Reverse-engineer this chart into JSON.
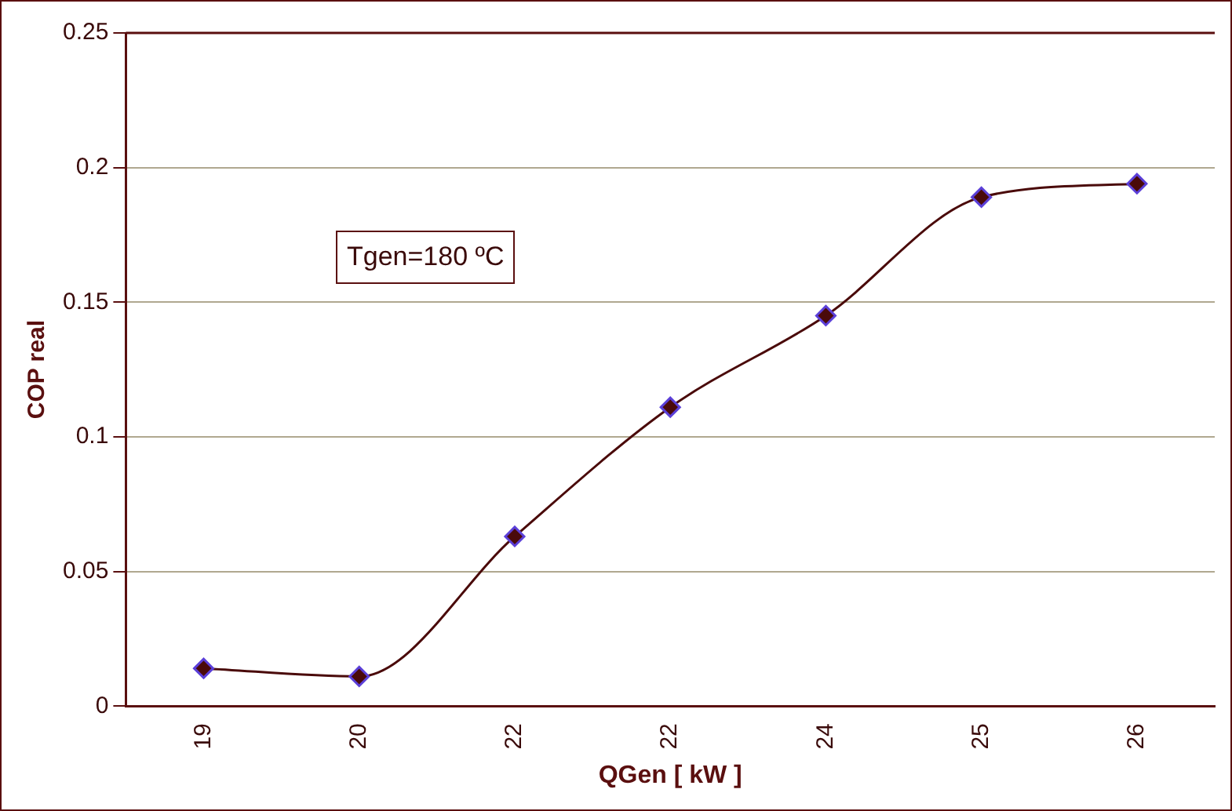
{
  "chart_data": {
    "type": "line",
    "xlabel": "QGen [ kW ]",
    "ylabel": "COP real",
    "categories": [
      "19",
      "20",
      "22",
      "22",
      "24",
      "25",
      "26"
    ],
    "series": [
      {
        "color": "#4a0a0a",
        "values": [
          0.014,
          0.011,
          0.063,
          0.111,
          0.145,
          0.189,
          0.194
        ]
      }
    ],
    "ylim": [
      0,
      0.25
    ],
    "yticks": [
      0,
      0.05,
      0.1,
      0.15,
      0.2,
      0.25
    ],
    "grid": "y",
    "legend": false,
    "marker": "diamond",
    "line_style": "solid",
    "annotations": [
      "Tgen=180 ºC"
    ]
  }
}
